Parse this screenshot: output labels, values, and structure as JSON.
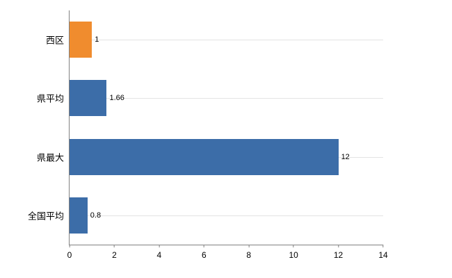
{
  "chart_data": {
    "type": "bar",
    "orientation": "horizontal",
    "title": "",
    "xlabel": "",
    "ylabel": "",
    "categories": [
      "西区",
      "県平均",
      "県最大",
      "全国平均"
    ],
    "values": [
      1,
      1.66,
      12,
      0.8
    ],
    "value_labels": [
      "1",
      "1.66",
      "12",
      "0.8"
    ],
    "bar_colors": [
      "#f08c2e",
      "#3c6da8",
      "#3c6da8",
      "#3c6da8"
    ],
    "xlim": [
      0,
      14
    ],
    "x_ticks": [
      "0",
      "2",
      "4",
      "6",
      "8",
      "10",
      "12",
      "14"
    ],
    "grid": "light-horizontal-at-category-centers",
    "legend": "none",
    "axis_color": "#808080",
    "gridline_color": "#e3e3e3",
    "background_color": "#ffffff"
  }
}
